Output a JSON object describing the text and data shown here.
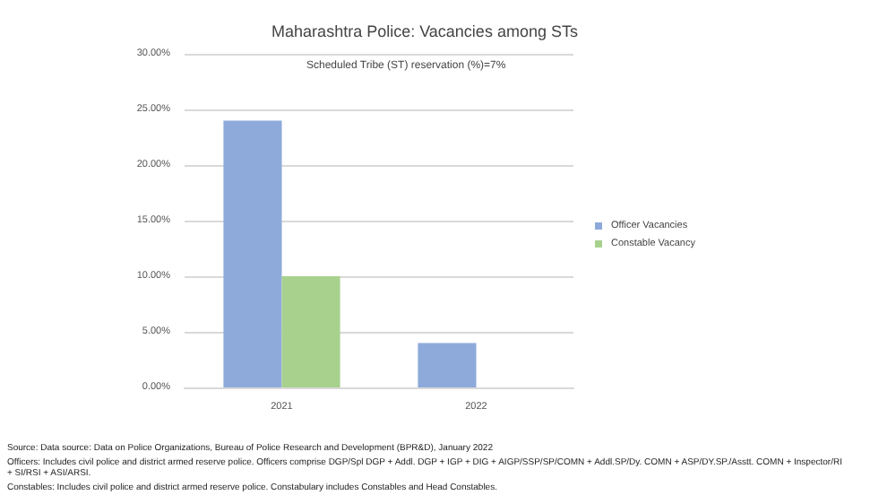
{
  "chart_data": {
    "type": "bar",
    "title": "Maharashtra Police: Vacancies among STs",
    "categories": [
      "2021",
      "2022"
    ],
    "series": [
      {
        "name": "Officer Vacancies",
        "color": "#8eaadb",
        "values": [
          24,
          4
        ]
      },
      {
        "name": "Constable Vacancy",
        "color": "#a9d18e",
        "values": [
          10,
          null
        ]
      }
    ],
    "ylim": [
      0,
      30
    ],
    "yticks": [
      {
        "value": 0,
        "label": "0.00%"
      },
      {
        "value": 5,
        "label": "5.00%"
      },
      {
        "value": 10,
        "label": "10.00%"
      },
      {
        "value": 15,
        "label": "15.00%"
      },
      {
        "value": 20,
        "label": "20.00%"
      },
      {
        "value": 25,
        "label": "25.00%"
      },
      {
        "value": 30,
        "label": "30.00%"
      }
    ],
    "grid": "y",
    "legend": "right",
    "annotations": [
      "Scheduled Tribe (ST) reservation (%)=7%",
      "Source: Data source: Data on Police Organizations, Bureau of Police Research and Development (BPR&D), January 2022",
      "Officers: Includes civil police and district armed reserve police. Officers comprise DGP/Spl DGP + Addl. DGP + IGP + DIG + AIGP/SSP/SP/COMN + Addl.SP/Dy. COMN + ASP/DY.SP./Asstt. COMN + Inspector/RI + SI/RSI + ASI/ARSI.",
      "Constables: Includes civil police and district armed reserve police. Constabulary includes Constables and Head Constables."
    ]
  }
}
